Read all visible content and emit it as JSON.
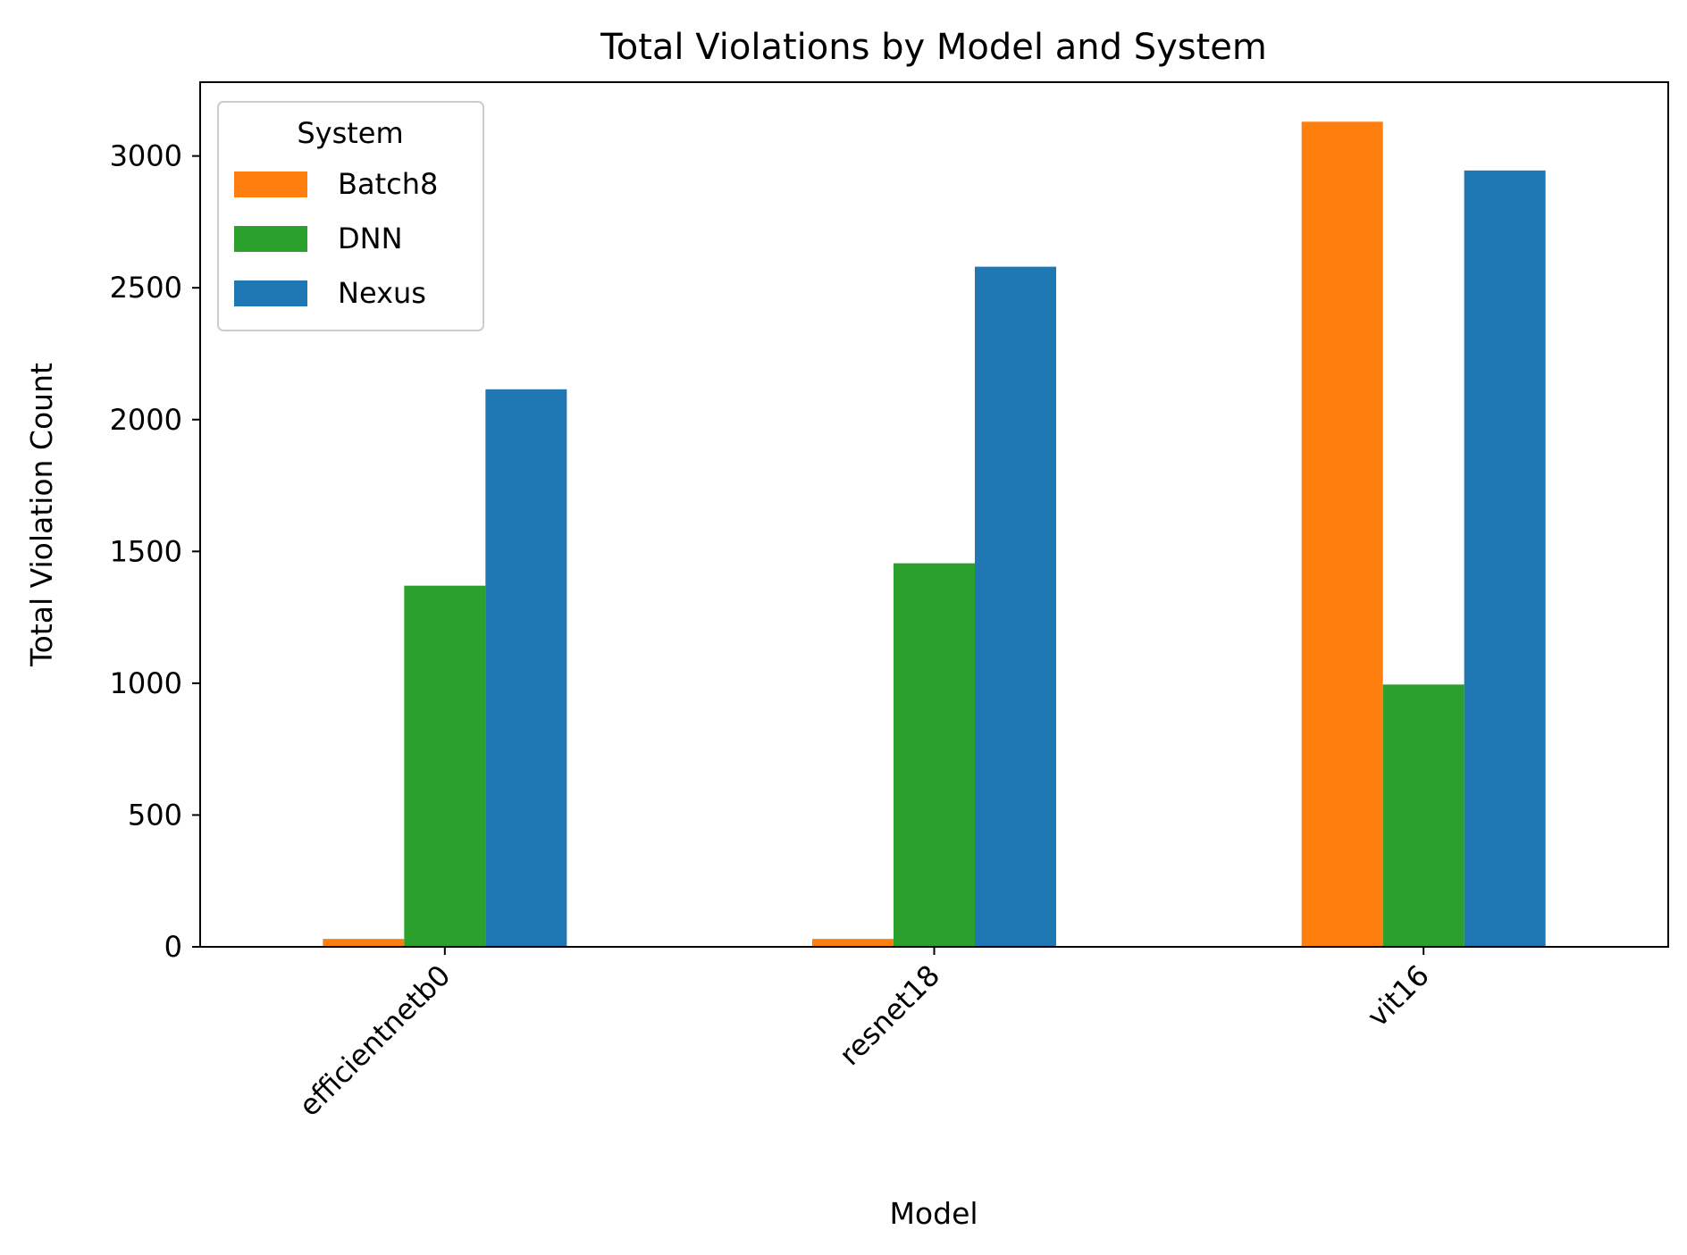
{
  "chart_data": {
    "type": "bar",
    "title": "Total Violations by Model and System",
    "xlabel": "Model",
    "ylabel": "Total Violation Count",
    "categories": [
      "efficientnetb0",
      "resnet18",
      "vit16"
    ],
    "series": [
      {
        "name": "Batch8",
        "color": "#ff7f0e",
        "values": [
          30,
          30,
          3130
        ]
      },
      {
        "name": "DNN",
        "color": "#2ca02c",
        "values": [
          1370,
          1455,
          995
        ]
      },
      {
        "name": "Nexus",
        "color": "#1f77b4",
        "values": [
          2115,
          2580,
          2945
        ]
      }
    ],
    "ylim": [
      0,
      3280
    ],
    "yticks": [
      0,
      500,
      1000,
      1500,
      2000,
      2500,
      3000
    ],
    "grid": false,
    "legend": {
      "title": "System",
      "position": "top-left"
    }
  }
}
